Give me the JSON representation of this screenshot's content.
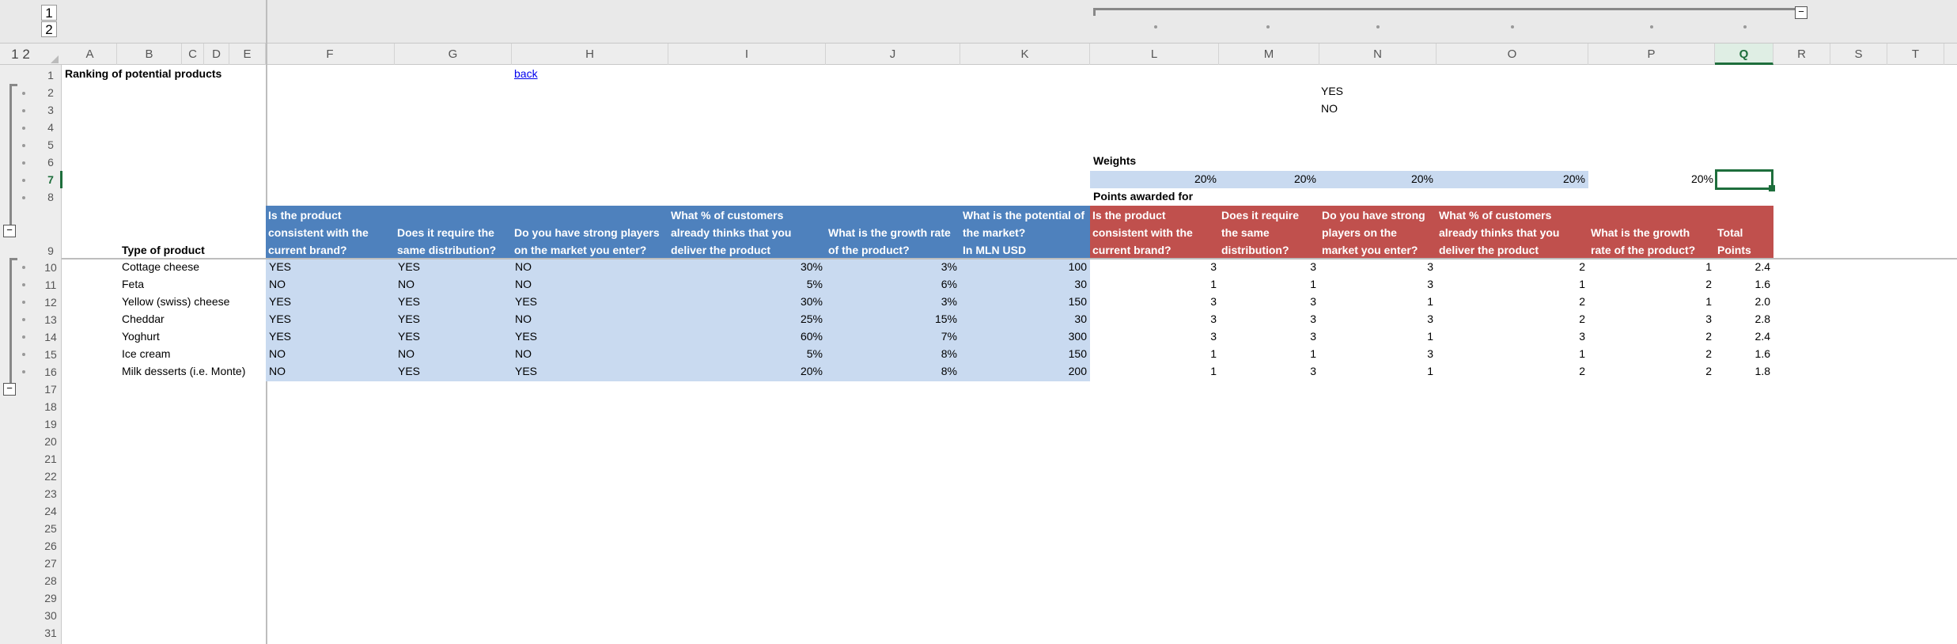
{
  "outline": {
    "level1": "1",
    "level2": "2",
    "levels_label": "1 2"
  },
  "columns": [
    "A",
    "B",
    "C",
    "D",
    "E",
    "F",
    "G",
    "H",
    "I",
    "J",
    "K",
    "L",
    "M",
    "N",
    "O",
    "P",
    "Q",
    "R",
    "S",
    "T"
  ],
  "rows": [
    "1",
    "2",
    "3",
    "4",
    "5",
    "6",
    "7",
    "8",
    "9",
    "10",
    "11",
    "12",
    "13",
    "14",
    "15",
    "16",
    "17",
    "18",
    "19",
    "20",
    "21",
    "22",
    "23",
    "24",
    "25",
    "26",
    "27",
    "28",
    "29",
    "30",
    "31"
  ],
  "selected": {
    "column": "Q",
    "row": "7"
  },
  "sheet": {
    "title": "Ranking of potential products",
    "back_link": "back",
    "yes_label": "YES",
    "no_label": "NO",
    "weights_label": "Weights",
    "points_label": "Points awarded for",
    "weights": [
      "20%",
      "20%",
      "20%",
      "20%",
      "20%"
    ],
    "type_header": "Type of product",
    "blue_headers": [
      "Is the product consistent with the current brand?",
      "Does it require the same distribution?",
      "Do you have strong players on the market you enter?",
      "What % of customers already thinks that you deliver the product",
      "What is the growth rate of the product?",
      "What is the potential of the market?\nIn MLN USD"
    ],
    "red_headers": [
      "Is the product consistent with the current brand?",
      "Does it require the same distribution?",
      "Do you have strong players on the market you enter?",
      "What % of customers already thinks that you deliver the product",
      "What is the growth rate of the product?",
      "Total Points"
    ],
    "products": [
      {
        "name": "Cottage cheese",
        "f": "YES",
        "g": "YES",
        "h": "NO",
        "i": "30%",
        "j": "3%",
        "k": "100",
        "l": "3",
        "m": "3",
        "n": "3",
        "o": "2",
        "p": "1",
        "q": "2.4"
      },
      {
        "name": "Feta",
        "f": "NO",
        "g": "NO",
        "h": "NO",
        "i": "5%",
        "j": "6%",
        "k": "30",
        "l": "1",
        "m": "1",
        "n": "3",
        "o": "1",
        "p": "2",
        "q": "1.6"
      },
      {
        "name": "Yellow (swiss) cheese",
        "f": "YES",
        "g": "YES",
        "h": "YES",
        "i": "30%",
        "j": "3%",
        "k": "150",
        "l": "3",
        "m": "3",
        "n": "1",
        "o": "2",
        "p": "1",
        "q": "2.0"
      },
      {
        "name": "Cheddar",
        "f": "YES",
        "g": "YES",
        "h": "NO",
        "i": "25%",
        "j": "15%",
        "k": "30",
        "l": "3",
        "m": "3",
        "n": "3",
        "o": "2",
        "p": "3",
        "q": "2.8"
      },
      {
        "name": "Yoghurt",
        "f": "YES",
        "g": "YES",
        "h": "YES",
        "i": "60%",
        "j": "7%",
        "k": "300",
        "l": "3",
        "m": "3",
        "n": "1",
        "o": "3",
        "p": "2",
        "q": "2.4"
      },
      {
        "name": "Ice cream",
        "f": "NO",
        "g": "NO",
        "h": "NO",
        "i": "5%",
        "j": "8%",
        "k": "150",
        "l": "1",
        "m": "1",
        "n": "3",
        "o": "1",
        "p": "2",
        "q": "1.6"
      },
      {
        "name": "Milk desserts (i.e. Monte)",
        "f": "NO",
        "g": "YES",
        "h": "YES",
        "i": "20%",
        "j": "8%",
        "k": "200",
        "l": "1",
        "m": "3",
        "n": "1",
        "o": "2",
        "p": "2",
        "q": "1.8"
      }
    ]
  }
}
